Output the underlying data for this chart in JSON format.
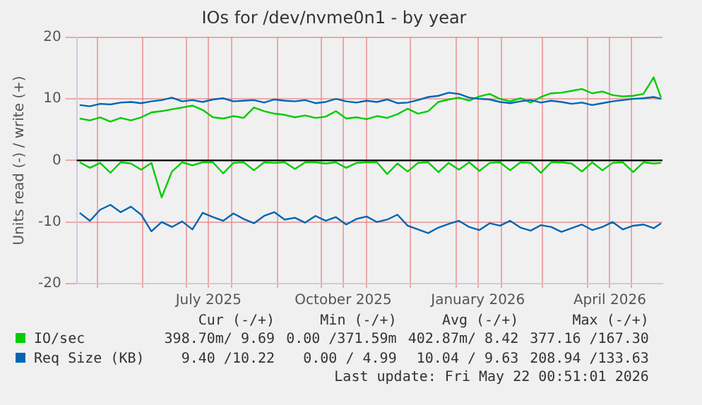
{
  "chart_data": {
    "type": "line",
    "title": "IOs for /dev/nvme0n1 - by year",
    "ylabel": "Units read (-) / write (+)",
    "x": [
      "2025-04-19",
      "2025-04-26",
      "2025-05-03",
      "2025-05-10",
      "2025-05-17",
      "2025-05-24",
      "2025-05-31",
      "2025-06-07",
      "2025-06-14",
      "2025-06-21",
      "2025-06-28",
      "2025-07-05",
      "2025-07-12",
      "2025-07-19",
      "2025-07-26",
      "2025-08-02",
      "2025-08-09",
      "2025-08-16",
      "2025-08-23",
      "2025-08-30",
      "2025-09-06",
      "2025-09-13",
      "2025-09-20",
      "2025-09-27",
      "2025-10-04",
      "2025-10-11",
      "2025-10-18",
      "2025-10-25",
      "2025-11-01",
      "2025-11-08",
      "2025-11-15",
      "2025-11-22",
      "2025-11-29",
      "2025-12-06",
      "2025-12-13",
      "2025-12-20",
      "2025-12-27",
      "2026-01-03",
      "2026-01-10",
      "2026-01-17",
      "2026-01-24",
      "2026-01-31",
      "2026-02-07",
      "2026-02-14",
      "2026-02-21",
      "2026-02-28",
      "2026-03-07",
      "2026-03-14",
      "2026-03-21",
      "2026-03-28",
      "2026-04-04",
      "2026-04-11",
      "2026-04-18",
      "2026-04-25",
      "2026-05-02",
      "2026-05-09",
      "2026-05-16",
      "2026-05-21"
    ],
    "series": [
      {
        "name": "Req Size (KB)",
        "color": "#0066b3",
        "values": [
          9.0,
          8.8,
          9.2,
          9.1,
          9.4,
          9.5,
          9.3,
          9.6,
          9.8,
          10.2,
          9.6,
          9.8,
          9.5,
          9.9,
          10.1,
          9.6,
          9.7,
          9.8,
          9.4,
          9.9,
          9.7,
          9.6,
          9.8,
          9.3,
          9.5,
          10.0,
          9.6,
          9.4,
          9.7,
          9.5,
          9.9,
          9.3,
          9.4,
          9.8,
          10.3,
          10.5,
          11.0,
          10.8,
          10.2,
          10.0,
          9.9,
          9.5,
          9.3,
          9.6,
          9.8,
          9.4,
          9.7,
          9.5,
          9.2,
          9.4,
          9.0,
          9.3,
          9.6,
          9.8,
          10.0,
          10.1,
          10.3,
          10.0
        ]
      },
      {
        "color": "#0066b3",
        "values": [
          -8.5,
          -9.8,
          -8.0,
          -7.2,
          -8.4,
          -7.5,
          -8.8,
          -11.5,
          -10.0,
          -10.8,
          -9.9,
          -11.2,
          -8.5,
          -9.2,
          -9.8,
          -8.6,
          -9.5,
          -10.2,
          -9.0,
          -8.4,
          -9.6,
          -9.3,
          -10.1,
          -9.0,
          -9.8,
          -9.2,
          -10.4,
          -9.5,
          -9.1,
          -10.0,
          -9.6,
          -8.8,
          -10.6,
          -11.2,
          -11.8,
          -10.9,
          -10.3,
          -9.8,
          -10.8,
          -11.3,
          -10.2,
          -10.6,
          -9.8,
          -10.9,
          -11.4,
          -10.5,
          -10.8,
          -11.6,
          -11.0,
          -10.4,
          -11.3,
          -10.8,
          -10.0,
          -11.2,
          -10.6,
          -10.4,
          -11.0,
          -10.2
        ]
      },
      {
        "name": "IO/sec",
        "color": "#00cc00",
        "values": [
          6.8,
          6.5,
          7.0,
          6.3,
          6.9,
          6.5,
          7.0,
          7.8,
          8.0,
          8.3,
          8.6,
          8.9,
          8.2,
          7.0,
          6.8,
          7.2,
          6.9,
          8.6,
          8.0,
          7.6,
          7.4,
          7.0,
          7.3,
          6.9,
          7.1,
          8.0,
          6.8,
          7.0,
          6.7,
          7.2,
          6.9,
          7.5,
          8.4,
          7.6,
          8.0,
          9.5,
          9.9,
          10.2,
          9.7,
          10.4,
          10.8,
          10.0,
          9.6,
          10.1,
          9.4,
          10.3,
          10.9,
          11.0,
          11.3,
          11.6,
          10.9,
          11.2,
          10.6,
          10.4,
          10.5,
          10.8,
          13.5,
          10.2
        ]
      },
      {
        "color": "#00cc00",
        "values": [
          -0.3,
          -1.2,
          -0.4,
          -2.0,
          -0.3,
          -0.5,
          -1.5,
          -0.4,
          -6.0,
          -1.8,
          -0.3,
          -0.8,
          -0.3,
          -0.3,
          -2.1,
          -0.4,
          -0.3,
          -1.6,
          -0.3,
          -0.4,
          -0.3,
          -1.4,
          -0.3,
          -0.3,
          -0.5,
          -0.3,
          -1.2,
          -0.4,
          -0.3,
          -0.3,
          -2.2,
          -0.5,
          -1.8,
          -0.4,
          -0.3,
          -1.9,
          -0.4,
          -1.5,
          -0.3,
          -1.7,
          -0.4,
          -0.3,
          -1.6,
          -0.3,
          -0.4,
          -2.0,
          -0.3,
          -0.3,
          -0.5,
          -1.8,
          -0.3,
          -1.6,
          -0.4,
          -0.3,
          -1.9,
          -0.3,
          -0.5,
          -0.4
        ]
      }
    ],
    "xlim": [
      "2025-04-17",
      "2026-05-22"
    ],
    "xticks": [
      {
        "value": "2025-05-01",
        "label": null
      },
      {
        "value": "2025-06-01",
        "label": null
      },
      {
        "value": "2025-07-01",
        "label": null
      },
      {
        "value": "2025-07-16",
        "label": "July 2025"
      },
      {
        "value": "2025-08-01",
        "label": null
      },
      {
        "value": "2025-09-01",
        "label": null
      },
      {
        "value": "2025-10-01",
        "label": null
      },
      {
        "value": "2025-10-16",
        "label": "October 2025"
      },
      {
        "value": "2025-11-01",
        "label": null
      },
      {
        "value": "2025-12-01",
        "label": null
      },
      {
        "value": "2026-01-01",
        "label": null
      },
      {
        "value": "2026-01-16",
        "label": "January 2026"
      },
      {
        "value": "2026-02-01",
        "label": null
      },
      {
        "value": "2026-03-01",
        "label": null
      },
      {
        "value": "2026-04-01",
        "label": null
      },
      {
        "value": "2026-04-16",
        "label": "April 2026"
      },
      {
        "value": "2026-05-01",
        "label": null
      }
    ],
    "ylim": [
      -20,
      20
    ],
    "yticks": [
      -20,
      -10,
      0,
      10,
      20
    ],
    "ref_lines": [
      {
        "axis": "y",
        "value": 0,
        "color": "#000000"
      }
    ],
    "grid": true,
    "legend": "bottom",
    "marker": "none",
    "line_style": "solid",
    "annotations": [
      "Cur (-/+)",
      "Min (-/+)",
      "Avg (-/+)",
      "Max (-/+)",
      "398.70m/ 9.69",
      "0.00 /371.59m",
      "402.87m/ 8.42",
      "377.16 /167.30",
      "9.40 /10.22",
      "0.00 / 4.99",
      "10.04 / 9.63",
      "208.94 /133.63",
      "Last update: Fri May 22 00:51:01 2026"
    ]
  }
}
